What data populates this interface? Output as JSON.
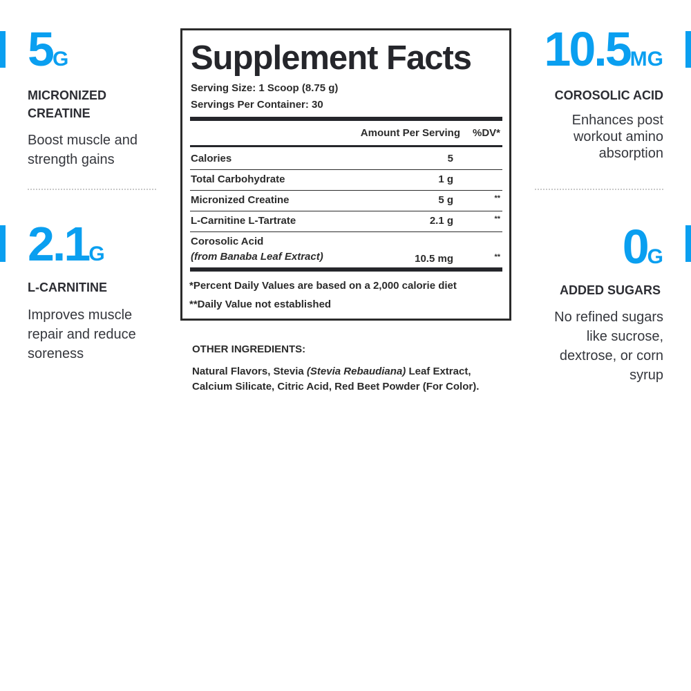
{
  "accent": "#0a9ff0",
  "left": [
    {
      "value": "5",
      "unit": "G",
      "label": [
        "MICRONIZED",
        "CREATINE"
      ],
      "desc": [
        "Boost muscle and",
        "strength gains"
      ]
    },
    {
      "value": "2.1",
      "unit": "G",
      "label": [
        "L-CARNITINE"
      ],
      "desc": [
        "Improves muscle",
        "repair and reduce",
        "soreness"
      ]
    }
  ],
  "right": [
    {
      "value": "10.5",
      "unit": "MG",
      "label": [
        "COROSOLIC ACID"
      ],
      "desc": [
        "Enhances post",
        "workout amino",
        "absorption"
      ]
    },
    {
      "value": "0",
      "unit": "G",
      "label": [
        "ADDED SUGARS"
      ],
      "desc": [
        "No refined sugars",
        "like sucrose,",
        "dextrose, or corn",
        "syrup"
      ]
    }
  ],
  "facts": {
    "title": "Supplement Facts",
    "serving_size": "Serving Size: 1 Scoop (8.75 g)",
    "servings": "Servings Per Container: 30",
    "col_amount": "Amount Per Serving",
    "col_dv": "%DV*",
    "rows": [
      {
        "name": "Calories",
        "amount": "5",
        "dv": ""
      },
      {
        "name": "Total Carbohydrate",
        "amount": "1 g",
        "dv": ""
      },
      {
        "name": "Micronized Creatine",
        "amount": "5 g",
        "dv": "**"
      },
      {
        "name": "L-Carnitine L-Tartrate",
        "amount": "2.1 g",
        "dv": "**"
      },
      {
        "name": "Corosolic Acid",
        "sub": "(from Banaba Leaf Extract)",
        "amount": "10.5 mg",
        "dv": "**"
      }
    ],
    "foot1": "*Percent Daily Values are based on a 2,000 calorie diet",
    "foot2": "**Daily Value not established"
  },
  "other": {
    "heading": "OTHER INGREDIENTS:",
    "line1_a": "Natural Flavors, Stevia ",
    "line1_i": "(Stevia Rebaudiana)",
    "line1_b": " Leaf Extract,",
    "line2": "Calcium Silicate, Citric Acid, Red Beet Powder (For Color)."
  }
}
